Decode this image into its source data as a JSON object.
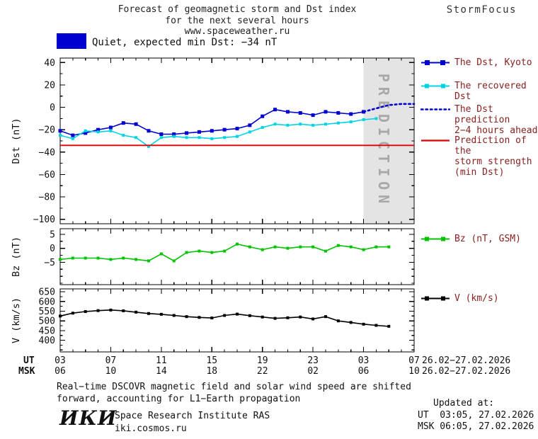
{
  "header": {
    "title_line1": "Forecast of geomagnetic storm and Dst index",
    "title_line2": "for the next several hours",
    "title_line3": "www.spaceweather.ru",
    "brand": "StormFocus"
  },
  "status": {
    "label": "Quiet, expected min Dst: −34 nT",
    "swatch_color": "#0000d0"
  },
  "legend": {
    "dst_kyoto": "The Dst, Kyoto",
    "recovered": "The recovered Dst",
    "prediction_l1": "The Dst prediction",
    "prediction_l2": "2−4 hours ahead",
    "strength_l1": "Prediction of the",
    "strength_l2": "storm strength",
    "strength_l3": "(min Dst)",
    "bz": "Bz (nT, GSM)",
    "v": "V (km/s)"
  },
  "axis": {
    "ut_label": "UT",
    "msk_label": "MSK",
    "ut_range": "26.02−27.02.2026",
    "msk_range": "26.02−27.02.2026"
  },
  "footer": {
    "note_l1": "Real−time DSCOVR magnetic field and solar wind speed are shifted",
    "note_l2": "forward, accounting for L1−Earth propagation",
    "updated_label": "Updated at:",
    "updated_ut": "UT  03:05, 27.02.2026",
    "updated_msk": "MSK 06:05, 27.02.2026",
    "logo": "ИКИ",
    "institute": "Space Research Institute RAS",
    "site": "iki.cosmos.ru"
  },
  "chart_data": {
    "type": "line",
    "title": "Forecast of geomagnetic storm and Dst index for the next several hours",
    "x_unit": "hours UT, 26.02−27.02.2026",
    "xlim": [
      3,
      31
    ],
    "xtick_hours": [
      3,
      7,
      11,
      15,
      19,
      23,
      27,
      31
    ],
    "xticks_ut": [
      "03",
      "07",
      "11",
      "15",
      "19",
      "23",
      "03",
      "07"
    ],
    "xticks_msk": [
      "06",
      "10",
      "14",
      "18",
      "22",
      "02",
      "06",
      "10"
    ],
    "prediction_band": {
      "start_hour": 27,
      "end_hour": 31,
      "label": "PREDICTION"
    },
    "panels": [
      {
        "name": "dst",
        "ylabel": "Dst (nT)",
        "ylim": [
          -104,
          44
        ],
        "yticks": [
          40,
          20,
          0,
          -20,
          -40,
          -60,
          -80,
          -100
        ],
        "yminor": 10,
        "series": [
          {
            "name": "The Dst, Kyoto",
            "color": "#0000d0",
            "marker": "square",
            "marker_size": 5,
            "start_hour": 3,
            "values": [
              -21,
              -25,
              -23,
              -20,
              -18,
              -14,
              -15,
              -21,
              -24,
              -24,
              -23,
              -22,
              -21,
              -20,
              -19,
              -16,
              -8,
              -2,
              -4,
              -5,
              -7,
              -4,
              -5,
              -6,
              -4
            ]
          },
          {
            "name": "The recovered Dst",
            "color": "#00d4e4",
            "marker": "square",
            "marker_size": 4,
            "start_hour": 3,
            "values": [
              -25,
              -28,
              -21,
              -22,
              -21,
              -25,
              -27,
              -35,
              -27,
              -26,
              -27,
              -27,
              -28,
              -27,
              -26,
              -22,
              -18,
              -15,
              -16,
              -15,
              -16,
              -15,
              -14,
              -13,
              -11,
              -10
            ]
          },
          {
            "name": "The Dst prediction 2−4 hours ahead",
            "color": "#0000d0",
            "style": "dotted",
            "start_hour": 27,
            "values": [
              -4,
              -1,
              2,
              3,
              3
            ]
          },
          {
            "name": "Prediction of the storm strength (min Dst)",
            "color": "#dd0000",
            "style": "hline",
            "value": -34
          }
        ]
      },
      {
        "name": "bz",
        "ylabel": "Bz (nT)",
        "ylim": [
          -13,
          7
        ],
        "yticks": [
          5,
          0,
          -5
        ],
        "yminor": 2.5,
        "series": [
          {
            "name": "Bz (nT, GSM)",
            "color": "#00c400",
            "marker": "square",
            "marker_size": 4,
            "start_hour": 3,
            "values": [
              -4,
              -3.5,
              -3.5,
              -3.5,
              -4,
              -3.5,
              -4,
              -4.5,
              -2,
              -4.5,
              -1.5,
              -1,
              -1.5,
              -1,
              1.5,
              0.5,
              -0.5,
              0.5,
              0,
              0.5,
              0.5,
              -1,
              1,
              0.5,
              -0.5,
              0.5,
              0.5
            ]
          }
        ]
      },
      {
        "name": "v",
        "ylabel": "V (km/s)",
        "ylim": [
          340,
          665
        ],
        "yticks": [
          650,
          600,
          550,
          500,
          450,
          400
        ],
        "yminor": 25,
        "series": [
          {
            "name": "V (km/s)",
            "color": "#000000",
            "marker": "square",
            "marker_size": 4,
            "start_hour": 3,
            "values": [
              525,
              540,
              548,
              553,
              556,
              552,
              545,
              538,
              534,
              528,
              522,
              518,
              515,
              528,
              535,
              527,
              520,
              513,
              516,
              520,
              510,
              522,
              500,
              492,
              483,
              477,
              472
            ]
          }
        ]
      }
    ]
  }
}
